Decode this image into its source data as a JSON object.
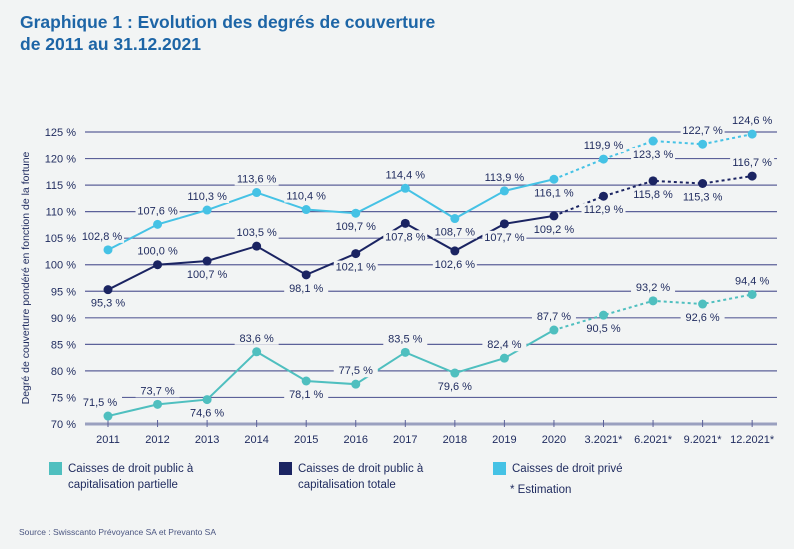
{
  "title_line1": "Graphique 1 : Evolution des degrés de couverture",
  "title_line2": "de 2011 au 31.12.2021",
  "note": "* Estimation",
  "source": "Source : Swisscanto Prévoyance SA et Prevanto SA",
  "chart_data": {
    "type": "line",
    "ylabel": "Degré de couverture pondéré en fonction de la fortune",
    "ylim": [
      70,
      125
    ],
    "yticks": [
      "70 %",
      "75 %",
      "80 %",
      "85 %",
      "90 %",
      "95 %",
      "100 %",
      "105 %",
      "110 %",
      "115 %",
      "120 %",
      "125 %"
    ],
    "grid": true,
    "legend_position": "bottom",
    "categories": [
      "2011",
      "2012",
      "2013",
      "2014",
      "2015",
      "2016",
      "2017",
      "2018",
      "2019",
      "2020",
      "3.2021*",
      "6.2021*",
      "9.2021*",
      "12.2021*"
    ],
    "estimated_from_category": "3.2021*",
    "series": [
      {
        "name": "Caisses de droit public à capitalisation partielle",
        "color": "#4fbfbf",
        "values": [
          71.5,
          73.7,
          74.6,
          83.6,
          78.1,
          77.5,
          83.5,
          79.6,
          82.4,
          87.7,
          90.5,
          93.2,
          92.6,
          94.4
        ],
        "labels": [
          "71,5 %",
          "73,7 %",
          "74,6 %",
          "83,6 %",
          "78,1 %",
          "77,5 %",
          "83,5 %",
          "79,6 %",
          "82,4 %",
          "87,7 %",
          "90,5 %",
          "93,2 %",
          "92,6 %",
          "94,4 %"
        ]
      },
      {
        "name": "Caisses de droit public à capitalisation totale",
        "color": "#1b2462",
        "values": [
          95.3,
          100.0,
          100.7,
          103.5,
          98.1,
          102.1,
          107.8,
          102.6,
          107.7,
          109.2,
          112.9,
          115.8,
          115.3,
          116.7
        ],
        "labels": [
          "95,3 %",
          "100,0 %",
          "100,7 %",
          "103,5 %",
          "98,1 %",
          "102,1 %",
          "107,8 %",
          "102,6 %",
          "107,7 %",
          "109,2 %",
          "112,9 %",
          "115,8 %",
          "115,3 %",
          "116,7 %"
        ]
      },
      {
        "name": "Caisses de droit privé",
        "color": "#45c2e5",
        "values": [
          102.8,
          107.6,
          110.3,
          113.6,
          110.4,
          109.7,
          114.4,
          108.7,
          113.9,
          116.1,
          119.9,
          123.3,
          122.7,
          124.6
        ],
        "labels": [
          "102,8 %",
          "107,6 %",
          "110,3 %",
          "113,6 %",
          "110,4 %",
          "109,7 %",
          "114,4 %",
          "108,7 %",
          "113,9 %",
          "116,1 %",
          "119,9 %",
          "123,3 %",
          "122,7 %",
          "124,6 %"
        ]
      }
    ]
  }
}
